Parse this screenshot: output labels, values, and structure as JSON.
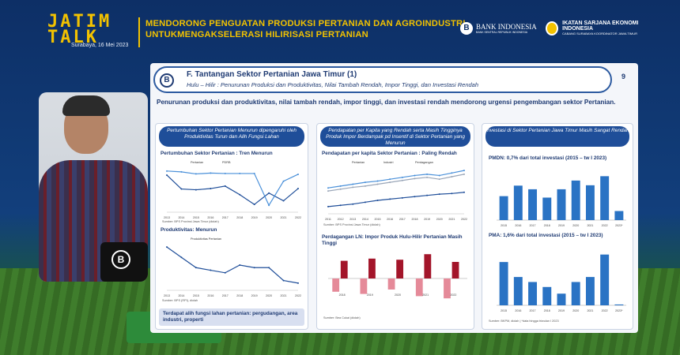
{
  "header": {
    "logo": "JATIM TALK",
    "title_line1": "MENDORONG PENGUATAN PRODUKSI PERTANIAN DAN AGROINDUSTRI",
    "title_line2": "UNTUKMENGAKSELERASI HILIRISASI PERTANIAN",
    "date": "Surabaya, 16 Mei 2023",
    "bi_name": "BANK INDONESIA",
    "bi_tagline": "BANK SENTRAL REPUBLIK INDONESIA",
    "isei_name": "IKATAN SARJANA EKONOMI INDONESIA",
    "isei_tagline": "CABANG SURABAYA KOORDINATOR JAWA TIMUR"
  },
  "slide": {
    "title": "F. Tantangan Sektor Pertanian Jawa Timur (1)",
    "subtitle": "Hulu – Hilir : Penurunan Produksi dan Produktivitas, Nilai Tambah Rendah, Impor Tinggi, dan Investasi Rendah",
    "page": "9",
    "intro": "Penurunan produksi dan produktivitas, nilai tambah rendah, impor tinggi, dan investasi rendah mendorong urgensi pengembangan sektor Pertanian.",
    "panel1": {
      "header": "Pertumbuhan Sektor Pertanian Menurun dipengaruhi oleh Produktivitas Turun dan Alih Fungsi Lahan",
      "chart1_title": "Pertumbuhan Sektor Pertanian : Tren Menurun",
      "chart1_source": "Sumber: BPS Provinsi Jawa Timur (diolah)",
      "chart2_title": "Produktivitas: Menurun",
      "chart2_source": "Sumber: BPS (RPI), diolah",
      "note": "Terdapat alih fungsi lahan pertanian: pergudangan, area industri, properti"
    },
    "panel2": {
      "header": "Pendapatan per Kapita yang Rendah serta Masih Tingginya Produk Impor Berdampak pd Insentif di Sektor Pertanian yang Menurun",
      "chart1_title": "Pendapatan per kapita  Sektor Pertanian : Paling Rendah",
      "chart1_source": "Sumber: BPS Provinsi Jawa Timur (diolah)",
      "chart2_title": "Perdagangan LN: Impor Produk Hulu-Hilir Pertanian Masih Tinggi",
      "chart2_source": "Sumber: Bea Cukai (diolah)"
    },
    "panel3": {
      "header": "Investasi di Sektor Pertanian Jawa Timur Masih Sangat Rendah",
      "pmdn_title": "PMDN: 0,7% dari total investasi (2015 – tw I 2023)",
      "pma_title": "PMA: 1,6% dari total investasi (2015 – tw I 2023)",
      "source": "Sumber: BKPM, diolah | *data hingga triwulan I 2023"
    }
  },
  "chart_data": [
    {
      "type": "line",
      "title": "Pertumbuhan Sektor Pertanian : Tren Menurun",
      "x": [
        "2013",
        "2014",
        "2015",
        "2016",
        "2017",
        "2018",
        "2019",
        "2020",
        "2021",
        "2022"
      ],
      "series": [
        {
          "name": "Pertanian",
          "values": [
            5.1,
            1.7,
            1.5,
            1.8,
            2.4,
            0.3,
            -2.1,
            0.7,
            -1.2,
            1.8
          ]
        },
        {
          "name": "PDRB",
          "values": [
            6.1,
            5.9,
            5.4,
            5.6,
            5.5,
            5.5,
            5.5,
            -2.3,
            3.6,
            5.3
          ]
        }
      ],
      "ylim": [
        -4,
        8
      ]
    },
    {
      "type": "line",
      "title": "Produktivitas: Menurun",
      "x": [
        "2013",
        "2014",
        "2015",
        "2016",
        "2017",
        "2018",
        "2019",
        "2020",
        "2021",
        "2022"
      ],
      "series": [
        {
          "name": "Produktivitas Pertanian",
          "values": [
            68,
            64,
            60,
            59,
            58,
            61,
            60,
            60,
            55,
            54
          ]
        }
      ]
    },
    {
      "type": "line",
      "title": "Pendapatan per kapita  Sektor Pertanian : Paling Rendah",
      "x": [
        "2011",
        "2012",
        "2013",
        "2014",
        "2015",
        "2016",
        "2017",
        "2018",
        "2019",
        "2020",
        "2021",
        "2022"
      ],
      "series": [
        {
          "name": "Pertanian",
          "values": [
            2,
            2.2,
            2.4,
            2.7,
            3.0,
            3.2,
            3.4,
            3.6,
            3.8,
            4.0,
            4.1,
            4.3
          ]
        },
        {
          "name": "Industri",
          "values": [
            5,
            5.3,
            5.6,
            5.9,
            6.1,
            6.4,
            6.7,
            7.0,
            7.2,
            7.0,
            7.4,
            7.8
          ]
        },
        {
          "name": "Perdagangan",
          "values": [
            4.5,
            4.8,
            5.1,
            5.3,
            5.6,
            5.9,
            6.2,
            6.5,
            6.7,
            6.4,
            6.8,
            7.2
          ]
        }
      ]
    },
    {
      "type": "bar",
      "title": "Perdagangan LN: Impor Produk Hulu-Hilir Pertanian Masih Tinggi",
      "categories": [
        "2018",
        "2019",
        "2020",
        "2021",
        "2022"
      ],
      "series": [
        {
          "name": "Neraca",
          "values": [
            -1.2,
            -1.4,
            -1.0,
            -1.6,
            -1.8
          ]
        },
        {
          "name": "Impor",
          "values": [
            1.6,
            1.8,
            1.7,
            2.2,
            1.5
          ]
        }
      ]
    },
    {
      "type": "bar",
      "title": "PMDN: 0,7% dari total investasi (2015 – tw I 2023)",
      "categories": [
        "2015",
        "2016",
        "2017",
        "2018",
        "2019",
        "2020",
        "2021",
        "2022",
        "2023*"
      ],
      "values": [
        0.66,
        0.95,
        0.85,
        0.62,
        0.85,
        1.09,
        0.96,
        1.21,
        0.25
      ]
    },
    {
      "type": "bar",
      "title": "PMA: 1,6% dari total investasi (2015 – tw I 2023)",
      "categories": [
        "2015",
        "2016",
        "2017",
        "2018",
        "2019",
        "2020",
        "2021",
        "2022",
        "2023*"
      ],
      "values": [
        0.52,
        0.34,
        0.28,
        0.22,
        0.14,
        0.28,
        0.34,
        0.61,
        0.01
      ]
    }
  ]
}
